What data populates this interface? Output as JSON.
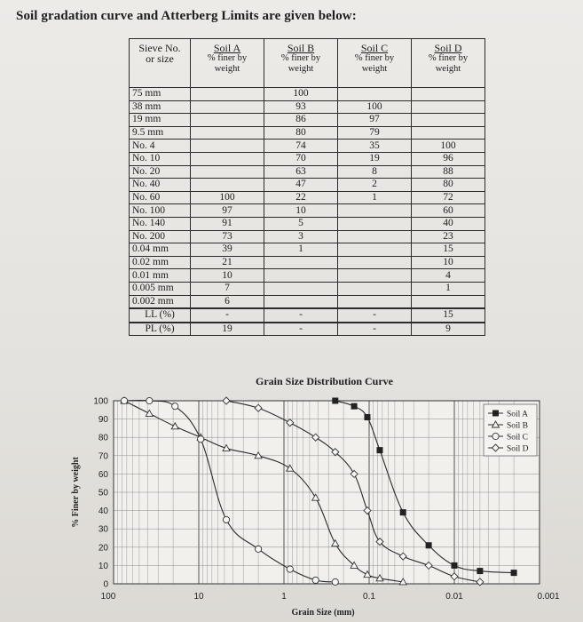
{
  "heading": "Soil gradation curve and Atterberg Limits are given below:",
  "table": {
    "header_size": [
      "Sieve No.",
      "or size"
    ],
    "soils": [
      {
        "name": "Soil A",
        "sub": "% finer by weight"
      },
      {
        "name": "Soil B",
        "sub": "% finer by weight"
      },
      {
        "name": "Soil C",
        "sub": "% finer by weight"
      },
      {
        "name": "Soil D",
        "sub": "% finer by weight"
      }
    ],
    "rows": [
      [
        "75 mm",
        "",
        "100",
        "",
        ""
      ],
      [
        "38 mm",
        "",
        "93",
        "100",
        ""
      ],
      [
        "19 mm",
        "",
        "86",
        "97",
        ""
      ],
      [
        "9.5 mm",
        "",
        "80",
        "79",
        ""
      ],
      [
        "No. 4",
        "",
        "74",
        "35",
        "100"
      ],
      [
        "No. 10",
        "",
        "70",
        "19",
        "96"
      ],
      [
        "No. 20",
        "",
        "63",
        "8",
        "88"
      ],
      [
        "No. 40",
        "",
        "47",
        "2",
        "80"
      ],
      [
        "No. 60",
        "100",
        "22",
        "1",
        "72"
      ],
      [
        "No. 100",
        "97",
        "10",
        "",
        "60"
      ],
      [
        "No. 140",
        "91",
        "5",
        "",
        "40"
      ],
      [
        "No. 200",
        "73",
        "3",
        "",
        "23"
      ],
      [
        "0.04 mm",
        "39",
        "1",
        "",
        "15"
      ],
      [
        "0.02 mm",
        "21",
        "",
        "",
        "10"
      ],
      [
        "0.01 mm",
        "10",
        "",
        "",
        "4"
      ],
      [
        "0.005 mm",
        "7",
        "",
        "",
        "1"
      ],
      [
        "0.002 mm",
        "6",
        "",
        "",
        ""
      ]
    ],
    "limits": [
      [
        "LL (%)",
        "-",
        "-",
        "-",
        "15"
      ],
      [
        "PL (%)",
        "19",
        "-",
        "-",
        "9"
      ]
    ]
  },
  "chart_data": {
    "type": "line",
    "title": "Grain Size Distribution Curve",
    "xlabel": "Grain Size (mm)",
    "ylabel": "% Finer by weight",
    "x_scale": "log",
    "x_reversed": true,
    "xlim": [
      100,
      0.001
    ],
    "ylim": [
      0,
      100
    ],
    "x_tick_labels": [
      "100",
      "10",
      "1",
      "0.1",
      "0.01",
      "0.001"
    ],
    "y_ticks": [
      0,
      10,
      20,
      30,
      40,
      50,
      60,
      70,
      80,
      90,
      100
    ],
    "grid": true,
    "legend_position": "top-right",
    "series": [
      {
        "name": "Soil A",
        "marker": "square",
        "x": [
          0.25,
          0.15,
          0.105,
          0.075,
          0.04,
          0.02,
          0.01,
          0.005,
          0.002
        ],
        "y": [
          100,
          97,
          91,
          73,
          39,
          21,
          10,
          7,
          6
        ]
      },
      {
        "name": "Soil B",
        "marker": "triangle",
        "x": [
          75,
          38,
          19,
          9.5,
          4.75,
          2,
          0.85,
          0.425,
          0.25,
          0.15,
          0.105,
          0.075,
          0.04
        ],
        "y": [
          100,
          93,
          86,
          80,
          74,
          70,
          63,
          47,
          22,
          10,
          5,
          3,
          1
        ]
      },
      {
        "name": "Soil C",
        "marker": "circle",
        "x": [
          75,
          38,
          19,
          9.5,
          4.75,
          2,
          0.85,
          0.425,
          0.25
        ],
        "y": [
          100,
          100,
          97,
          79,
          35,
          19,
          8,
          2,
          1
        ]
      },
      {
        "name": "Soil D",
        "marker": "diamond",
        "x": [
          4.75,
          2,
          0.85,
          0.425,
          0.25,
          0.15,
          0.105,
          0.075,
          0.04,
          0.02,
          0.01,
          0.005
        ],
        "y": [
          100,
          96,
          88,
          80,
          72,
          60,
          40,
          23,
          15,
          10,
          4,
          1
        ]
      }
    ]
  }
}
